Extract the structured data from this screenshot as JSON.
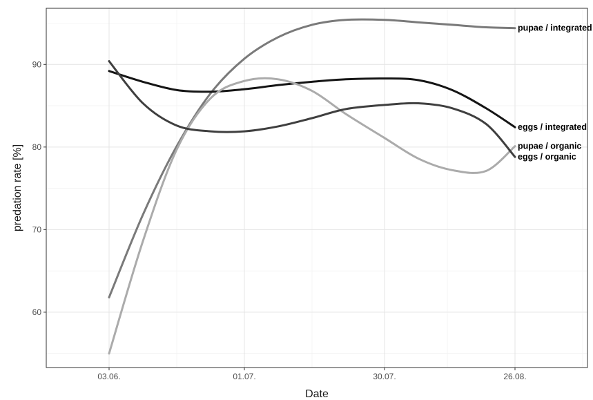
{
  "chart_data": {
    "type": "line",
    "title": "",
    "xlabel": "Date",
    "ylabel": "predation rate [%]",
    "x_ticks": [
      "03.06.",
      "01.07.",
      "30.07.",
      "26.08."
    ],
    "y_ticks": [
      60,
      70,
      80,
      90
    ],
    "xlim": [
      "2019-05-21",
      "2019-09-10"
    ],
    "ylim": [
      53.3,
      96.8
    ],
    "grid": true,
    "legend": "none",
    "series": [
      {
        "name": "pupae / integrated",
        "color": "#7a7a7a",
        "x": [
          "2019-06-03",
          "2019-06-10",
          "2019-06-17",
          "2019-06-24",
          "2019-07-01",
          "2019-07-08",
          "2019-07-15",
          "2019-07-22",
          "2019-07-30",
          "2019-08-06",
          "2019-08-13",
          "2019-08-20",
          "2019-08-26"
        ],
        "y": [
          61.8,
          71.8,
          80.1,
          86.5,
          90.7,
          93.3,
          94.8,
          95.4,
          95.4,
          95.1,
          94.8,
          94.5,
          94.4
        ]
      },
      {
        "name": "eggs / integrated",
        "color": "#151515",
        "x": [
          "2019-06-03",
          "2019-06-10",
          "2019-06-17",
          "2019-06-24",
          "2019-07-01",
          "2019-07-08",
          "2019-07-15",
          "2019-07-22",
          "2019-07-30",
          "2019-08-06",
          "2019-08-13",
          "2019-08-20",
          "2019-08-26"
        ],
        "y": [
          89.2,
          87.9,
          86.9,
          86.7,
          87.0,
          87.5,
          87.9,
          88.2,
          88.3,
          88.1,
          86.9,
          84.7,
          82.4
        ]
      },
      {
        "name": "pupae / organic",
        "color": "#ababab",
        "x": [
          "2019-06-03",
          "2019-06-10",
          "2019-06-17",
          "2019-06-24",
          "2019-07-01",
          "2019-07-08",
          "2019-07-15",
          "2019-07-22",
          "2019-07-30",
          "2019-08-06",
          "2019-08-13",
          "2019-08-20",
          "2019-08-26"
        ],
        "y": [
          55.0,
          68.6,
          79.7,
          85.9,
          88.0,
          88.2,
          86.8,
          84.0,
          81.1,
          78.6,
          77.2,
          77.1,
          80.1
        ]
      },
      {
        "name": "eggs / organic",
        "color": "#3f3f3f",
        "x": [
          "2019-06-03",
          "2019-06-10",
          "2019-06-17",
          "2019-06-24",
          "2019-07-01",
          "2019-07-08",
          "2019-07-15",
          "2019-07-22",
          "2019-07-30",
          "2019-08-06",
          "2019-08-13",
          "2019-08-20",
          "2019-08-26"
        ],
        "y": [
          90.4,
          85.3,
          82.6,
          81.9,
          81.9,
          82.5,
          83.5,
          84.6,
          85.1,
          85.3,
          84.7,
          82.8,
          78.8
        ]
      }
    ]
  }
}
